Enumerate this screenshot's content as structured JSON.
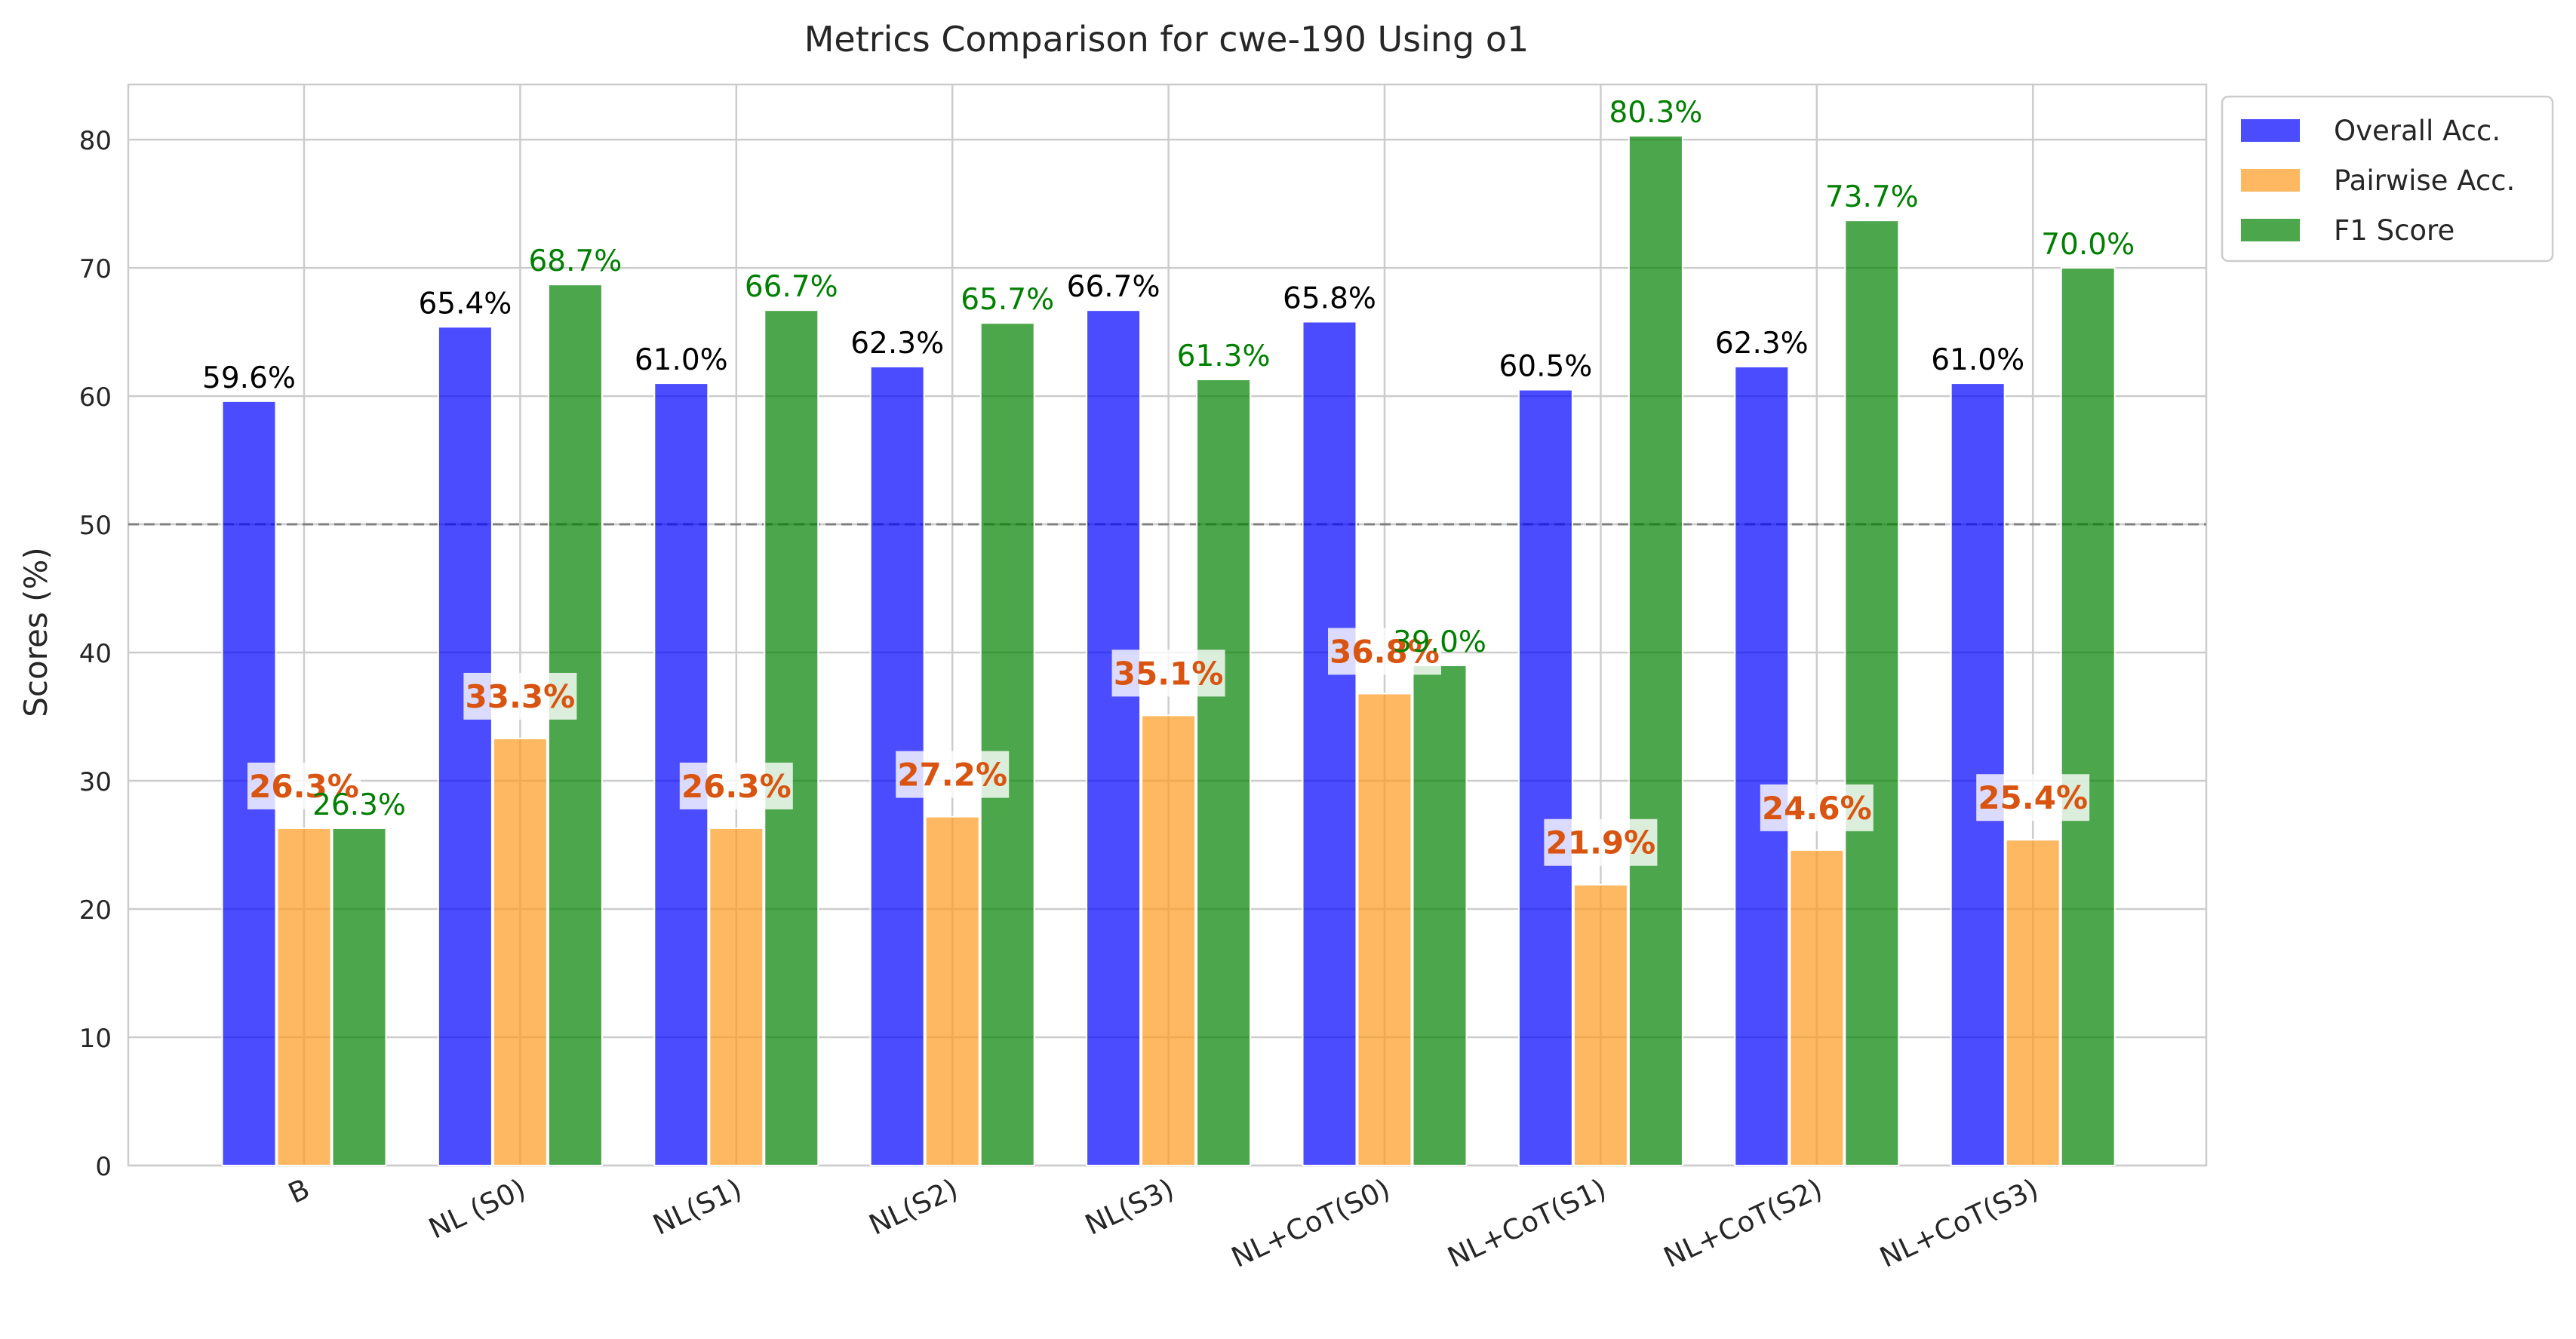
{
  "chart_data": {
    "type": "bar",
    "title": "Metrics Comparison for cwe-190 Using o1",
    "xlabel": "",
    "ylabel": "Scores (%)",
    "ylim": [
      0,
      84.3
    ],
    "yticks": [
      0,
      10,
      20,
      30,
      40,
      50,
      60,
      70,
      80
    ],
    "grid": true,
    "reference_line": 50,
    "legend_position": "outside top-right",
    "categories": [
      "B",
      "NL (S0)",
      "NL(S1)",
      "NL(S2)",
      "NL(S3)",
      "NL+CoT(S0)",
      "NL+CoT(S1)",
      "NL+CoT(S2)",
      "NL+CoT(S3)"
    ],
    "series": [
      {
        "name": "Overall Acc.",
        "color": "#0000ff",
        "label_color": "#000000",
        "values": [
          59.6,
          65.4,
          61.0,
          62.3,
          66.7,
          65.8,
          60.5,
          62.3,
          61.0
        ],
        "labels": [
          "59.6%",
          "65.4%",
          "61.0%",
          "62.3%",
          "66.7%",
          "65.8%",
          "60.5%",
          "62.3%",
          "61.0%"
        ]
      },
      {
        "name": "Pairwise Acc.",
        "color": "#ff9a1f",
        "label_color": "#d95410",
        "values": [
          26.3,
          33.3,
          26.3,
          27.2,
          35.1,
          36.8,
          21.9,
          24.6,
          25.4
        ],
        "labels": [
          "26.3%",
          "33.3%",
          "26.3%",
          "27.2%",
          "35.1%",
          "36.8%",
          "21.9%",
          "24.6%",
          "25.4%"
        ]
      },
      {
        "name": "F1 Score",
        "color": "#008000",
        "label_color": "#008000",
        "values": [
          26.3,
          68.7,
          66.7,
          65.7,
          61.3,
          39.0,
          80.3,
          73.7,
          70.0
        ],
        "labels": [
          "26.3%",
          "68.7%",
          "66.7%",
          "65.7%",
          "61.3%",
          "39.0%",
          "80.3%",
          "73.7%",
          "70.0%"
        ]
      }
    ]
  }
}
